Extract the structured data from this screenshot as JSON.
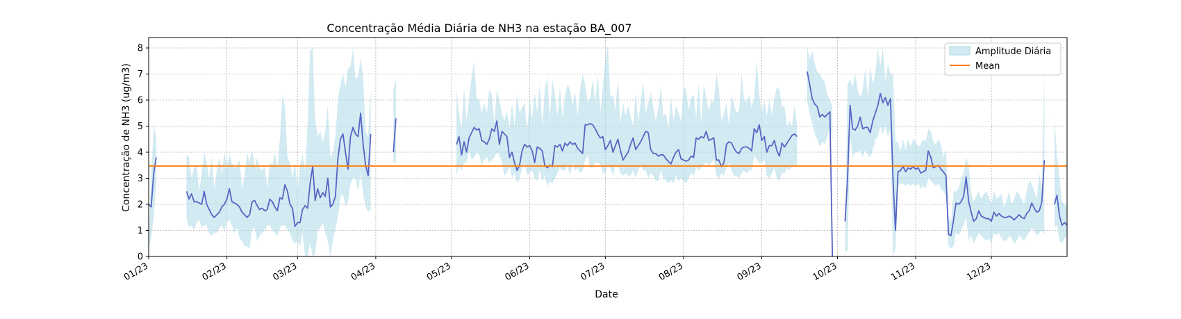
{
  "chart_data": {
    "type": "line",
    "title": "Concentração Média Diária de NH3 na estação BA_007",
    "xlabel": "Date",
    "ylabel": "Concentração de NH3 (ug/m3)",
    "ylim": [
      0,
      8.4
    ],
    "xlim": [
      "2023-01-01",
      "2023-12-31"
    ],
    "yticks": [
      0,
      1,
      2,
      3,
      4,
      5,
      6,
      7,
      8
    ],
    "xticks": [
      {
        "date": "2023-01-01",
        "label": "01/23"
      },
      {
        "date": "2023-02-01",
        "label": "02/23"
      },
      {
        "date": "2023-03-01",
        "label": "03/23"
      },
      {
        "date": "2023-04-01",
        "label": "04/23"
      },
      {
        "date": "2023-05-01",
        "label": "05/23"
      },
      {
        "date": "2023-06-01",
        "label": "06/23"
      },
      {
        "date": "2023-07-01",
        "label": "07/23"
      },
      {
        "date": "2023-08-01",
        "label": "08/23"
      },
      {
        "date": "2023-09-01",
        "label": "09/23"
      },
      {
        "date": "2023-10-01",
        "label": "10/23"
      },
      {
        "date": "2023-11-01",
        "label": "11/23"
      },
      {
        "date": "2023-12-01",
        "label": "12/23"
      }
    ],
    "grid": true,
    "legend_position": "top-right",
    "legend": [
      {
        "label": "Amplitude Diária",
        "kind": "band",
        "color": "#a8d8e2"
      },
      {
        "label": "Mean",
        "kind": "line",
        "color": "#ff7f0e"
      }
    ],
    "mean_value": 3.47,
    "colors": {
      "line": "#5665c4",
      "band": "#add8e6",
      "mean": "#ff7f0e"
    },
    "segments": [
      {
        "start": "2023-01-01",
        "values": [
          2.0,
          1.9,
          3.2,
          3.8
        ],
        "upper": [
          0.7,
          3.0,
          5.0,
          4.6
        ],
        "lower": [
          0.3,
          0.7,
          1.5,
          2.8
        ]
      },
      {
        "start": "2023-01-16",
        "values": [
          2.5,
          2.2,
          2.4,
          2.1,
          2.1,
          2.05,
          2.0,
          2.5,
          2.0,
          1.8,
          1.6,
          1.5,
          1.6,
          1.7,
          1.9,
          2.0,
          2.2,
          2.6,
          2.1,
          2.05,
          2.0,
          1.9,
          1.7,
          1.6,
          1.5,
          1.6,
          2.1,
          2.15,
          1.95,
          1.8,
          1.85,
          1.75,
          1.8,
          2.2,
          2.1,
          1.9,
          1.75,
          2.25,
          2.2,
          2.75,
          2.5,
          2.0,
          1.85,
          1.15,
          1.3,
          1.3,
          1.8,
          1.95,
          1.85,
          2.8,
          3.45,
          2.15,
          2.6,
          2.25,
          2.45,
          2.3,
          3.0,
          1.9,
          2.0,
          2.3,
          3.75,
          4.5,
          4.7,
          4.0,
          3.35,
          4.6,
          4.95,
          4.7,
          4.6,
          5.5,
          4.3,
          3.5,
          3.1,
          4.7
        ],
        "upper": [
          3.9,
          3.8,
          3.0,
          3.4,
          3.5,
          2.5,
          3.2,
          4.0,
          3.6,
          3.0,
          3.8,
          2.6,
          3.3,
          3.8,
          3.2,
          4.0,
          3.5,
          3.9,
          3.6,
          3.4,
          3.5,
          3.7,
          2.6,
          3.1,
          4.0,
          3.6,
          4.1,
          3.4,
          3.8,
          3.4,
          3.3,
          3.5,
          2.6,
          3.6,
          3.5,
          4.0,
          3.4,
          4.5,
          6.2,
          5.8,
          3.8,
          3.6,
          3.0,
          3.6,
          2.6,
          3.5,
          3.9,
          3.3,
          5.0,
          7.9,
          8.0,
          5.2,
          4.6,
          4.8,
          4.4,
          4.8,
          5.8,
          3.8,
          4.0,
          4.6,
          6.0,
          6.6,
          7.0,
          6.5,
          7.2,
          7.3,
          8.0,
          6.8,
          6.9,
          7.6,
          6.9,
          4.8,
          4.6,
          6.5
        ],
        "lower": [
          1.5,
          1.1,
          1.2,
          1.0,
          1.3,
          1.4,
          1.1,
          1.2,
          1.2,
          0.9,
          0.8,
          0.9,
          0.9,
          1.1,
          1.2,
          1.0,
          1.3,
          1.4,
          1.2,
          0.9,
          1.1,
          0.7,
          0.6,
          0.4,
          0.4,
          0.3,
          1.0,
          1.1,
          0.6,
          0.8,
          0.9,
          1.0,
          1.2,
          1.2,
          1.0,
          0.9,
          0.8,
          1.1,
          1.2,
          1.2,
          1.0,
          0.9,
          0.6,
          0.5,
          0.6,
          0.4,
          0.9,
          0.0,
          0.0,
          0.5,
          0.0,
          0.1,
          1.0,
          1.1,
          1.3,
          0.9,
          0.6,
          0.0,
          0.6,
          1.1,
          1.5,
          2.3,
          2.4,
          1.9,
          2.1,
          2.8,
          3.0,
          3.0,
          2.5,
          3.2,
          2.4,
          1.9,
          1.7,
          1.8
        ]
      },
      {
        "start": "2023-04-08",
        "values": [
          4.0,
          5.3
        ],
        "upper": [
          6.4,
          6.8
        ],
        "lower": [
          3.6,
          3.6
        ]
      },
      {
        "start": "2023-05-03",
        "values": [
          4.3,
          4.6,
          3.9,
          4.4,
          4.0,
          4.55,
          4.75,
          4.95,
          4.85,
          4.9,
          4.45,
          4.4,
          4.3,
          4.5,
          4.9,
          4.8,
          5.2,
          4.3,
          4.8,
          4.7,
          4.6,
          3.8,
          4.0,
          3.6,
          3.3,
          3.5,
          4.05,
          4.3,
          4.2,
          4.25,
          4.05,
          3.6,
          4.2,
          4.15,
          4.05,
          3.5,
          3.4,
          3.5,
          3.45,
          4.25,
          4.2,
          4.3,
          4.05,
          4.35,
          4.25,
          4.4,
          4.3,
          4.35,
          4.15,
          4.05,
          3.95,
          5.05,
          5.05,
          5.1,
          5.05,
          4.9,
          4.7,
          4.55,
          4.6,
          4.1,
          4.25,
          4.45,
          4.0,
          4.25,
          4.5,
          4.05,
          3.7,
          3.85,
          4.0,
          4.3,
          4.55,
          4.1,
          4.25,
          4.4,
          4.6,
          4.8,
          4.75,
          4.1,
          3.95,
          3.95,
          3.85,
          3.9,
          3.9,
          3.75,
          3.65,
          3.55,
          3.8,
          4.0,
          4.1,
          3.75,
          3.7,
          3.65,
          3.7,
          3.85,
          3.8,
          4.55,
          4.5,
          4.6,
          4.55,
          4.8,
          4.45,
          4.5,
          4.55,
          3.7,
          3.7,
          3.45,
          3.6,
          4.3,
          4.4,
          4.35,
          4.15,
          4.0,
          3.95,
          4.15,
          4.2,
          4.2,
          4.15,
          4.05,
          4.9,
          4.75,
          5.05,
          4.45,
          4.6,
          4.0,
          4.25,
          4.25,
          4.45,
          4.05,
          3.85,
          4.35,
          4.2,
          4.35,
          4.5,
          4.65,
          4.7,
          4.6
        ],
        "upper": [
          6.4,
          5.5,
          4.9,
          6.5,
          5.2,
          6.0,
          6.9,
          7.5,
          6.1,
          6.0,
          5.5,
          5.9,
          5.5,
          6.4,
          6.2,
          5.1,
          6.4,
          6.0,
          5.5,
          5.2,
          5.6,
          4.9,
          5.9,
          5.0,
          6.2,
          5.5,
          5.7,
          5.9,
          4.8,
          6.1,
          5.3,
          6.3,
          5.5,
          6.6,
          5.0,
          6.4,
          6.9,
          5.3,
          6.8,
          6.2,
          5.4,
          6.5,
          5.3,
          6.2,
          6.6,
          6.4,
          5.8,
          6.3,
          5.4,
          6.4,
          7.0,
          6.6,
          5.9,
          6.1,
          6.8,
          5.9,
          7.0,
          5.5,
          6.5,
          7.6,
          8.1,
          6.1,
          6.2,
          5.6,
          6.8,
          5.1,
          5.9,
          5.4,
          5.8,
          5.4,
          5.0,
          6.3,
          5.2,
          5.9,
          6.7,
          5.5,
          5.9,
          6.3,
          5.7,
          5.2,
          5.7,
          6.5,
          5.4,
          5.5,
          4.9,
          6.1,
          5.2,
          5.8,
          5.5,
          5.2,
          6.5,
          6.4,
          5.6,
          6.1,
          6.2,
          5.3,
          6.7,
          5.1,
          6.6,
          6.1,
          5.6,
          6.0,
          5.9,
          7.0,
          6.4,
          5.2,
          5.5,
          5.9,
          5.0,
          6.2,
          5.8,
          5.5,
          5.6,
          7.0,
          6.0,
          5.9,
          6.2,
          5.7,
          6.1,
          7.5,
          6.2,
          5.5,
          6.0,
          5.4,
          6.0,
          5.4,
          6.1,
          6.5,
          6.4,
          5.7,
          5.8,
          5.0,
          5.2,
          5.0,
          5.8,
          5.0
        ],
        "lower": [
          3.1,
          3.5,
          3.3,
          3.6,
          3.6,
          4.1,
          3.7,
          3.8,
          4.0,
          3.9,
          3.5,
          3.7,
          3.8,
          3.6,
          3.7,
          3.8,
          4.0,
          3.9,
          3.6,
          3.1,
          3.2,
          3.5,
          3.0,
          3.2,
          2.8,
          3.0,
          3.4,
          3.6,
          3.1,
          3.2,
          3.3,
          3.0,
          2.9,
          3.3,
          2.9,
          3.1,
          2.7,
          2.9,
          2.8,
          3.0,
          3.2,
          3.4,
          3.3,
          3.3,
          3.5,
          3.1,
          3.6,
          3.3,
          3.4,
          3.2,
          3.3,
          3.7,
          3.9,
          3.4,
          3.4,
          3.6,
          3.6,
          3.5,
          3.2,
          3.2,
          3.5,
          3.4,
          3.1,
          3.5,
          3.5,
          3.2,
          3.1,
          3.2,
          3.1,
          3.1,
          3.3,
          3.0,
          3.3,
          3.5,
          3.3,
          3.3,
          3.0,
          3.2,
          3.1,
          2.9,
          2.9,
          3.3,
          3.0,
          2.9,
          2.8,
          2.9,
          2.8,
          3.1,
          2.9,
          3.0,
          2.9,
          2.8,
          3.0,
          3.2,
          3.1,
          3.4,
          3.3,
          3.4,
          3.5,
          3.6,
          3.5,
          3.6,
          3.7,
          3.1,
          3.0,
          3.2,
          3.1,
          3.4,
          3.6,
          3.3,
          3.1,
          3.1,
          3.0,
          3.2,
          3.3,
          3.2,
          3.3,
          3.3,
          3.9,
          3.7,
          3.6,
          3.6,
          3.7,
          3.1,
          3.0,
          3.2,
          3.4,
          3.0,
          2.9,
          3.2,
          3.2,
          3.4,
          3.3,
          3.5,
          3.5,
          3.5
        ]
      },
      {
        "start": "2023-09-19",
        "values": [
          7.1,
          6.6,
          6.05,
          5.85,
          5.75,
          5.35,
          5.45,
          5.35,
          5.45,
          5.55,
          0.0
        ],
        "upper": [
          8.0,
          7.6,
          7.9,
          7.4,
          7.1,
          7.0,
          6.8,
          6.7,
          6.2,
          6.0,
          5.8
        ],
        "lower": [
          6.0,
          5.5,
          5.1,
          4.7,
          4.5,
          4.2,
          4.4,
          4.3,
          4.6,
          5.0,
          4.5
        ]
      },
      {
        "start": "2023-10-04",
        "values": [
          1.35,
          3.0,
          5.8,
          4.9,
          4.85,
          5.0,
          5.35,
          4.9,
          4.95,
          4.95,
          4.75,
          5.2,
          5.5,
          5.8,
          6.25,
          5.9,
          6.1,
          5.8,
          6.05,
          3.0,
          1.0,
          3.25,
          3.3,
          3.45,
          3.25,
          3.4,
          3.35,
          3.45,
          3.35,
          3.4,
          3.2,
          3.25,
          3.3,
          4.05,
          3.8,
          3.4,
          3.45,
          3.5,
          3.35,
          3.25,
          3.1,
          0.85,
          0.8,
          1.4,
          2.05,
          2.0,
          2.1,
          2.3,
          3.05,
          2.1,
          1.7,
          1.35,
          1.45,
          1.75,
          1.55,
          1.5,
          1.45,
          1.45,
          1.35,
          1.7,
          1.55,
          1.65,
          1.55,
          1.5,
          1.5,
          1.55,
          1.5,
          1.4,
          1.5,
          1.6,
          1.5,
          1.45,
          1.65,
          1.75,
          2.05,
          1.85,
          1.7,
          1.75,
          2.1,
          3.7
        ],
        "upper": [
          0.2,
          6.6,
          6.8,
          6.5,
          7.0,
          6.4,
          6.1,
          6.4,
          7.2,
          6.1,
          7.3,
          6.6,
          7.0,
          8.0,
          7.3,
          8.0,
          6.7,
          7.4,
          7.0,
          7.0,
          4.4,
          4.4,
          4.0,
          4.5,
          4.1,
          4.5,
          4.2,
          4.5,
          4.4,
          4.2,
          4.3,
          4.5,
          4.4,
          4.9,
          4.8,
          4.4,
          4.3,
          4.5,
          4.3,
          3.8,
          4.1,
          1.6,
          1.3,
          2.5,
          2.5,
          2.6,
          3.0,
          3.2,
          3.8,
          3.5,
          2.4,
          2.1,
          2.3,
          2.5,
          2.2,
          2.4,
          2.5,
          2.3,
          2.0,
          2.5,
          2.2,
          2.3,
          2.4,
          1.9,
          2.1,
          2.5,
          2.0,
          2.2,
          2.5,
          2.4,
          2.2,
          2.0,
          2.5,
          2.9,
          2.8,
          2.5,
          2.2,
          3.2,
          2.6,
          7.2
        ],
        "lower": [
          0.2,
          0.2,
          4.7,
          3.8,
          4.0,
          4.0,
          4.1,
          3.8,
          4.1,
          3.9,
          3.8,
          4.1,
          4.5,
          4.6,
          5.0,
          4.7,
          5.0,
          4.6,
          4.9,
          0.0,
          0.3,
          2.7,
          2.8,
          2.8,
          2.7,
          2.8,
          2.7,
          2.8,
          2.7,
          2.8,
          2.6,
          2.7,
          2.6,
          3.0,
          2.9,
          2.8,
          2.7,
          2.8,
          2.6,
          2.5,
          2.3,
          0.4,
          0.3,
          0.4,
          0.9,
          0.8,
          1.0,
          1.2,
          1.5,
          0.6,
          0.8,
          0.5,
          0.7,
          0.9,
          0.8,
          0.7,
          0.6,
          0.7,
          0.5,
          0.9,
          0.8,
          0.9,
          0.7,
          0.6,
          0.6,
          0.8,
          0.7,
          0.5,
          0.6,
          0.8,
          0.7,
          0.6,
          0.8,
          0.9,
          1.1,
          1.0,
          0.8,
          0.9,
          1.0,
          0.8
        ]
      },
      {
        "start": "2023-12-26",
        "values": [
          2.0,
          2.35,
          1.55,
          1.2,
          1.3,
          1.2
        ],
        "upper": [
          5.3,
          3.9,
          3.0,
          2.1,
          2.0,
          1.9
        ],
        "lower": [
          1.1,
          1.2,
          0.6,
          0.5,
          0.7,
          0.8
        ]
      }
    ]
  }
}
